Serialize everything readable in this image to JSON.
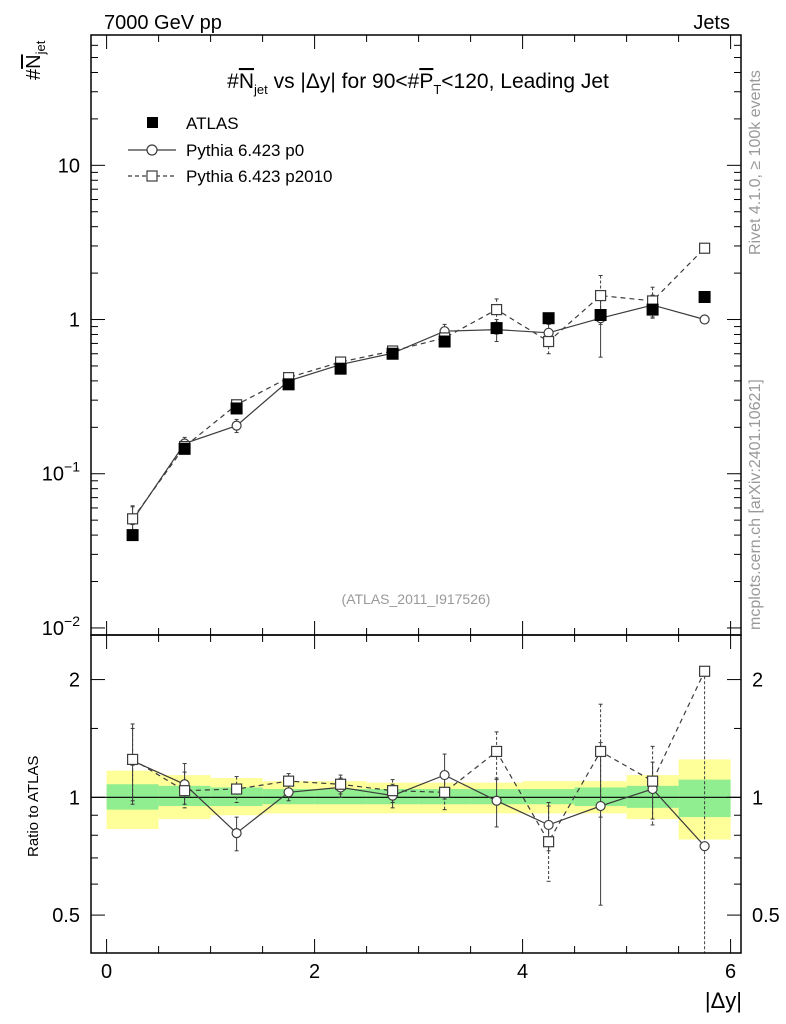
{
  "header": {
    "left": "7000 GeV pp",
    "right": "Jets"
  },
  "side_labels": {
    "rivet": "Rivet 4.1.0, ≥ 100k events",
    "mcplots": "mcplots.cern.ch [arXiv:2401.10621]"
  },
  "colors": {
    "band_inner": "#90ee90",
    "band_outer": "#ffff99",
    "atlas": "#000000",
    "mc": "#3c3c3c",
    "watermark": "#999999"
  },
  "chart_data": [
    {
      "type": "scatter",
      "panel": "main",
      "title": "#N_jet vs |Δy| for 90<#P_T<120, Leading Jet",
      "title_parts": {
        "pre": "#",
        "n": "N",
        "jet_sub": "jet",
        "mid": " vs |Δy| for 90<#",
        "p": "P",
        "t_sub": "T",
        "post": "<120, Leading Jet"
      },
      "ylabel": {
        "hash": "#",
        "n": "N",
        "sub": "jet"
      },
      "yscale": "log",
      "ylim": [
        0.009,
        70
      ],
      "xlim": [
        -0.15,
        6.1
      ],
      "ytick_labels": [
        {
          "value": 10,
          "base": "10",
          "exp": ""
        },
        {
          "value": 1,
          "base": "1",
          "exp": ""
        },
        {
          "value": 0.1,
          "base": "10",
          "exp": "−1"
        },
        {
          "value": 0.01,
          "base": "10",
          "exp": "−2"
        }
      ],
      "watermark": "(ATLAS_2011_I917526)",
      "legend": [
        "ATLAS",
        "Pythia 6.423 p0",
        "Pythia 6.423 p2010"
      ],
      "legend_position": "top-left",
      "x": [
        0.25,
        0.75,
        1.25,
        1.75,
        2.25,
        2.75,
        3.25,
        3.75,
        4.25,
        4.75,
        5.25,
        5.75
      ],
      "series": [
        {
          "name": "ATLAS",
          "values": [
            0.04,
            0.145,
            0.265,
            0.38,
            0.48,
            0.6,
            0.72,
            0.88,
            1.02,
            1.07,
            1.16,
            1.4
          ]
        },
        {
          "name": "Pythia 6.423 p0",
          "values": [
            0.05,
            0.157,
            0.205,
            0.4,
            0.51,
            0.605,
            0.84,
            0.86,
            0.82,
            1.02,
            1.24,
            1.0
          ],
          "err_low": [
            0.01,
            0.015,
            0.02,
            0.02,
            0.03,
            0.04,
            0.09,
            0.14,
            0.11,
            0.45,
            0.2,
            0.0
          ],
          "err_high": [
            0.012,
            0.015,
            0.02,
            0.02,
            0.03,
            0.04,
            0.09,
            0.14,
            0.11,
            0.45,
            0.2,
            0.0
          ]
        },
        {
          "name": "Pythia 6.423 p2010",
          "values": [
            0.051,
            0.15,
            0.28,
            0.42,
            0.53,
            0.625,
            0.76,
            1.16,
            0.72,
            1.43,
            1.32,
            2.9
          ],
          "err_low": [
            0.01,
            0.015,
            0.02,
            0.02,
            0.03,
            0.04,
            0.06,
            0.2,
            0.12,
            0.5,
            0.3,
            0.0
          ],
          "err_high": [
            0.01,
            0.015,
            0.02,
            0.02,
            0.03,
            0.04,
            0.06,
            0.2,
            0.12,
            0.5,
            0.3,
            0.0
          ]
        }
      ]
    },
    {
      "type": "scatter",
      "panel": "ratio",
      "ylabel": "Ratio to ATLAS",
      "xlabel": "|Δy|",
      "yscale": "log",
      "ylim": [
        0.4,
        2.6
      ],
      "xlim": [
        -0.15,
        6.1
      ],
      "yticks": [
        2,
        1,
        0.5
      ],
      "ytick_labels": [
        "2",
        "1",
        "0.5"
      ],
      "xticks": [
        0,
        2,
        4,
        6
      ],
      "xtick_labels": [
        "0",
        "2",
        "4",
        "6"
      ],
      "bin_edges": [
        0,
        0.5,
        1.0,
        1.5,
        2.0,
        2.5,
        3.0,
        3.5,
        4.0,
        4.5,
        5.0,
        5.5,
        6.0
      ],
      "band_inner": [
        [
          0.93,
          1.08
        ],
        [
          0.95,
          1.07
        ],
        [
          0.95,
          1.06
        ],
        [
          0.96,
          1.05
        ],
        [
          0.96,
          1.05
        ],
        [
          0.96,
          1.05
        ],
        [
          0.96,
          1.05
        ],
        [
          0.96,
          1.05
        ],
        [
          0.96,
          1.05
        ],
        [
          0.95,
          1.06
        ],
        [
          0.94,
          1.07
        ],
        [
          0.89,
          1.11
        ]
      ],
      "band_outer": [
        [
          0.83,
          1.17
        ],
        [
          0.88,
          1.14
        ],
        [
          0.9,
          1.12
        ],
        [
          0.91,
          1.1
        ],
        [
          0.91,
          1.1
        ],
        [
          0.91,
          1.09
        ],
        [
          0.91,
          1.09
        ],
        [
          0.91,
          1.09
        ],
        [
          0.91,
          1.1
        ],
        [
          0.91,
          1.1
        ],
        [
          0.88,
          1.14
        ],
        [
          0.78,
          1.25
        ]
      ],
      "x": [
        0.25,
        0.75,
        1.25,
        1.75,
        2.25,
        2.75,
        3.25,
        3.75,
        4.25,
        4.75,
        5.25,
        5.75
      ],
      "series": [
        {
          "name": "Pythia 6.423 p0",
          "values": [
            1.24,
            1.08,
            0.81,
            1.03,
            1.06,
            1.01,
            1.14,
            0.98,
            0.85,
            0.95,
            1.05,
            0.75
          ],
          "err_low": [
            0.28,
            0.12,
            0.08,
            0.05,
            0.06,
            0.07,
            0.15,
            0.14,
            0.12,
            0.42,
            0.17,
            0.0
          ],
          "err_high": [
            0.3,
            0.14,
            0.08,
            0.05,
            0.06,
            0.07,
            0.15,
            0.14,
            0.12,
            0.43,
            0.18,
            0.0
          ]
        },
        {
          "name": "Pythia 6.423 p2010",
          "values": [
            1.25,
            1.04,
            1.05,
            1.1,
            1.08,
            1.04,
            1.03,
            1.31,
            0.77,
            1.31,
            1.1,
            2.1
          ],
          "err_low": [
            0.27,
            0.1,
            0.08,
            0.05,
            0.06,
            0.07,
            0.1,
            0.2,
            0.16,
            0.42,
            0.25,
            1.8
          ],
          "err_high": [
            0.25,
            0.12,
            0.08,
            0.05,
            0.06,
            0.07,
            0.1,
            0.16,
            0.18,
            0.42,
            0.25,
            0.0
          ]
        }
      ]
    }
  ]
}
